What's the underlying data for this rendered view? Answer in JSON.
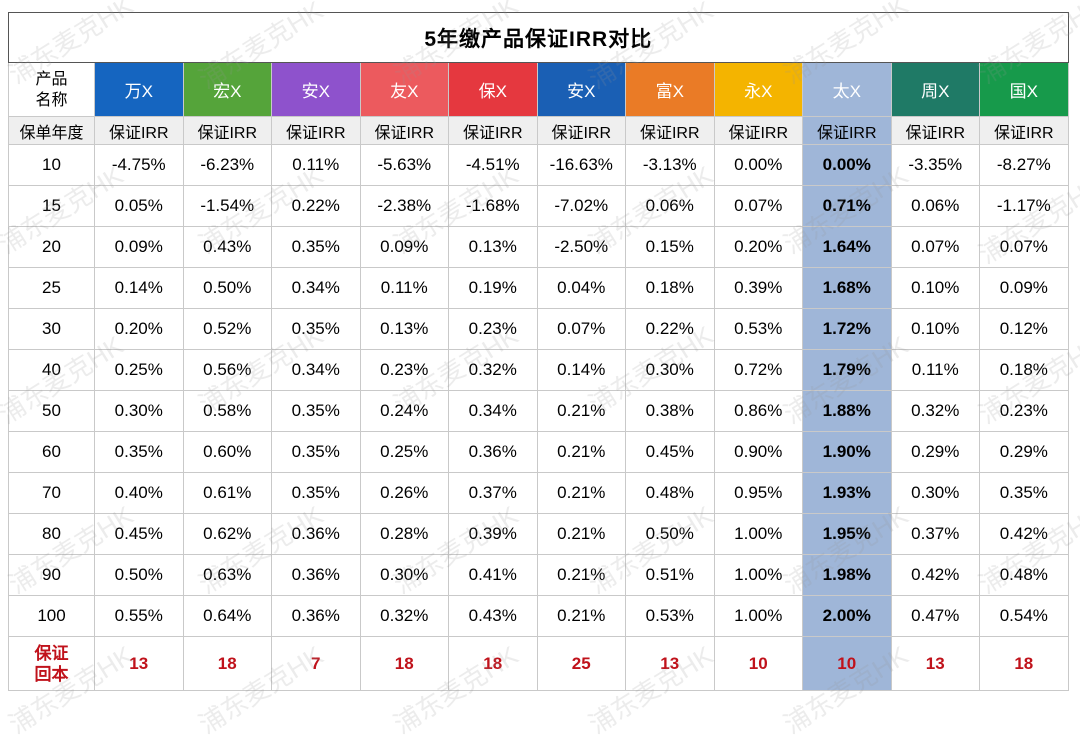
{
  "title": "5年缴产品保证IRR对比",
  "row_header": {
    "product_name_line1": "产品",
    "product_name_line2": "名称",
    "policy_year": "保单年度",
    "return_line1": "保证",
    "return_line2": "回本"
  },
  "products": [
    {
      "name": "万X",
      "color": "#1565c0"
    },
    {
      "name": "宏X",
      "color": "#55a43a"
    },
    {
      "name": "安X",
      "color": "#8e52cc"
    },
    {
      "name": "友X",
      "color": "#ec5a5e"
    },
    {
      "name": "保X",
      "color": "#e5383f"
    },
    {
      "name": "安X",
      "color": "#1a5fb4"
    },
    {
      "name": "富X",
      "color": "#ea7b26"
    },
    {
      "name": "永X",
      "color": "#f4b400"
    },
    {
      "name": "太X",
      "color": "#9fb6d8"
    },
    {
      "name": "周X",
      "color": "#1f7a66"
    },
    {
      "name": "国X",
      "color": "#179a4b"
    }
  ],
  "metric_label": "保证IRR",
  "highlight_column": 8,
  "rows": [
    {
      "year": "10",
      "values": [
        "-4.75%",
        "-6.23%",
        "0.11%",
        "-5.63%",
        "-4.51%",
        "-16.63%",
        "-3.13%",
        "0.00%",
        "0.00%",
        "-3.35%",
        "-8.27%"
      ]
    },
    {
      "year": "15",
      "values": [
        "0.05%",
        "-1.54%",
        "0.22%",
        "-2.38%",
        "-1.68%",
        "-7.02%",
        "0.06%",
        "0.07%",
        "0.71%",
        "0.06%",
        "-1.17%"
      ]
    },
    {
      "year": "20",
      "values": [
        "0.09%",
        "0.43%",
        "0.35%",
        "0.09%",
        "0.13%",
        "-2.50%",
        "0.15%",
        "0.20%",
        "1.64%",
        "0.07%",
        "0.07%"
      ]
    },
    {
      "year": "25",
      "values": [
        "0.14%",
        "0.50%",
        "0.34%",
        "0.11%",
        "0.19%",
        "0.04%",
        "0.18%",
        "0.39%",
        "1.68%",
        "0.10%",
        "0.09%"
      ]
    },
    {
      "year": "30",
      "values": [
        "0.20%",
        "0.52%",
        "0.35%",
        "0.13%",
        "0.23%",
        "0.07%",
        "0.22%",
        "0.53%",
        "1.72%",
        "0.10%",
        "0.12%"
      ]
    },
    {
      "year": "40",
      "values": [
        "0.25%",
        "0.56%",
        "0.34%",
        "0.23%",
        "0.32%",
        "0.14%",
        "0.30%",
        "0.72%",
        "1.79%",
        "0.11%",
        "0.18%"
      ]
    },
    {
      "year": "50",
      "values": [
        "0.30%",
        "0.58%",
        "0.35%",
        "0.24%",
        "0.34%",
        "0.21%",
        "0.38%",
        "0.86%",
        "1.88%",
        "0.32%",
        "0.23%"
      ]
    },
    {
      "year": "60",
      "values": [
        "0.35%",
        "0.60%",
        "0.35%",
        "0.25%",
        "0.36%",
        "0.21%",
        "0.45%",
        "0.90%",
        "1.90%",
        "0.29%",
        "0.29%"
      ]
    },
    {
      "year": "70",
      "values": [
        "0.40%",
        "0.61%",
        "0.35%",
        "0.26%",
        "0.37%",
        "0.21%",
        "0.48%",
        "0.95%",
        "1.93%",
        "0.30%",
        "0.35%"
      ]
    },
    {
      "year": "80",
      "values": [
        "0.45%",
        "0.62%",
        "0.36%",
        "0.28%",
        "0.39%",
        "0.21%",
        "0.50%",
        "1.00%",
        "1.95%",
        "0.37%",
        "0.42%"
      ]
    },
    {
      "year": "90",
      "values": [
        "0.50%",
        "0.63%",
        "0.36%",
        "0.30%",
        "0.41%",
        "0.21%",
        "0.51%",
        "1.00%",
        "1.98%",
        "0.42%",
        "0.48%"
      ]
    },
    {
      "year": "100",
      "values": [
        "0.55%",
        "0.64%",
        "0.36%",
        "0.32%",
        "0.43%",
        "0.21%",
        "0.53%",
        "1.00%",
        "2.00%",
        "0.47%",
        "0.54%"
      ]
    }
  ],
  "guaranteed_return_years": [
    "13",
    "18",
    "7",
    "18",
    "18",
    "25",
    "13",
    "10",
    "10",
    "13",
    "18"
  ],
  "watermark_text": "浦东麦克HK"
}
